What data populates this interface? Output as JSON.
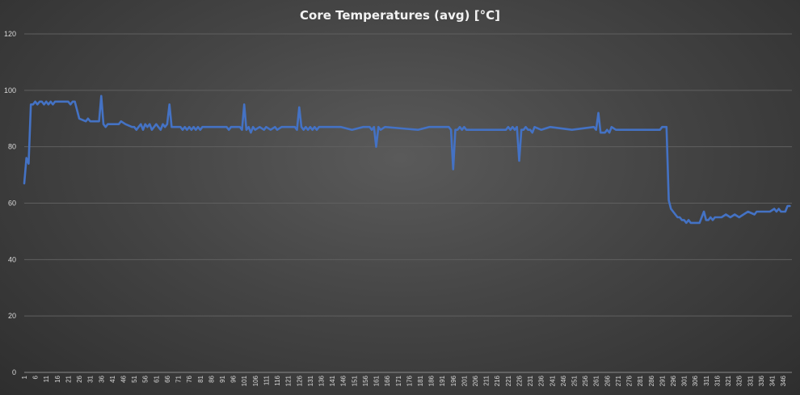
{
  "chart_data": {
    "type": "line",
    "title": "Core Temperatures (avg) [°C]",
    "xlabel": "",
    "ylabel": "",
    "ylim": [
      0,
      120
    ],
    "yticks": [
      0,
      20,
      40,
      60,
      80,
      100,
      120
    ],
    "xlim": [
      1,
      350
    ],
    "xticks": [
      1,
      6,
      11,
      16,
      21,
      26,
      31,
      36,
      41,
      46,
      51,
      56,
      61,
      66,
      71,
      76,
      81,
      86,
      91,
      96,
      101,
      106,
      111,
      116,
      121,
      126,
      131,
      136,
      141,
      146,
      151,
      156,
      161,
      166,
      171,
      176,
      181,
      186,
      191,
      196,
      201,
      206,
      211,
      216,
      221,
      226,
      231,
      236,
      241,
      246,
      251,
      256,
      261,
      266,
      271,
      276,
      281,
      286,
      291,
      296,
      301,
      306,
      311,
      316,
      321,
      326,
      331,
      336,
      341,
      346
    ],
    "grid": "horizontal",
    "legend": "none",
    "series_color": "#4472c4",
    "series": [
      {
        "x": [
          1,
          2,
          3,
          4,
          5,
          6,
          7,
          8,
          9,
          10,
          11,
          12,
          13,
          14,
          15,
          16,
          20,
          21,
          22,
          23,
          24,
          26,
          29,
          30,
          31,
          32,
          35,
          36,
          37,
          38,
          39,
          44,
          45,
          47,
          50,
          51,
          52,
          53,
          54,
          55,
          56,
          57,
          58,
          59,
          60,
          61,
          62,
          63,
          64,
          65,
          66,
          67,
          68,
          69,
          72,
          73,
          74,
          75,
          76,
          77,
          78,
          79,
          80,
          81,
          82,
          93,
          94,
          95,
          96,
          99,
          100,
          101,
          102,
          103,
          104,
          105,
          106,
          108,
          110,
          111,
          113,
          115,
          116,
          118,
          123,
          124,
          125,
          126,
          127,
          128,
          129,
          130,
          131,
          132,
          133,
          134,
          135,
          145,
          150,
          155,
          158,
          159,
          160,
          161,
          162,
          163,
          165,
          180,
          185,
          190,
          193,
          194,
          195,
          196,
          197,
          198,
          199,
          200,
          201,
          202,
          203,
          205,
          210,
          215,
          220,
          221,
          222,
          223,
          224,
          225,
          226,
          227,
          228,
          229,
          230,
          231,
          232,
          233,
          236,
          240,
          250,
          260,
          261,
          262,
          263,
          264,
          265,
          266,
          267,
          268,
          270,
          275,
          280,
          285,
          290,
          291,
          292,
          293,
          294,
          295,
          296,
          297,
          298,
          299,
          300,
          301,
          302,
          303,
          304,
          305,
          306,
          308,
          310,
          311,
          312,
          313,
          314,
          315,
          318,
          320,
          322,
          324,
          326,
          328,
          330,
          333,
          334,
          335,
          340,
          342,
          343,
          344,
          345,
          347,
          348,
          349
        ],
        "y": [
          67,
          76,
          74,
          95,
          95,
          96,
          95,
          96,
          96,
          95,
          96,
          95,
          96,
          95,
          96,
          96,
          96,
          96,
          95,
          96,
          96,
          90,
          89,
          90,
          89,
          89,
          89,
          98,
          88,
          87,
          88,
          88,
          89,
          88,
          87,
          87,
          86,
          87,
          88,
          86,
          88,
          87,
          88,
          86,
          87,
          88,
          87,
          86,
          88,
          87,
          88,
          95,
          87,
          87,
          87,
          86,
          87,
          86,
          87,
          86,
          87,
          86,
          87,
          86,
          87,
          87,
          86,
          87,
          87,
          87,
          86,
          95,
          86,
          87,
          85,
          87,
          86,
          87,
          86,
          87,
          86,
          87,
          86,
          87,
          87,
          87,
          86,
          94,
          87,
          86,
          87,
          86,
          87,
          86,
          87,
          86,
          87,
          87,
          86,
          87,
          87,
          86,
          87,
          80,
          87,
          86,
          87,
          86,
          87,
          87,
          87,
          87,
          86,
          72,
          86,
          86,
          87,
          86,
          87,
          86,
          86,
          86,
          86,
          86,
          86,
          87,
          86,
          87,
          86,
          87,
          75,
          86,
          86,
          87,
          86,
          86,
          85,
          87,
          86,
          87,
          86,
          87,
          86,
          92,
          85,
          85,
          85,
          86,
          85,
          87,
          86,
          86,
          86,
          86,
          86,
          87,
          87,
          87,
          61,
          58,
          57,
          56,
          55,
          55,
          54,
          54,
          53,
          54,
          53,
          53,
          53,
          53,
          57,
          54,
          54,
          55,
          54,
          55,
          55,
          56,
          55,
          56,
          55,
          56,
          57,
          56,
          57,
          57,
          57,
          58,
          57,
          58,
          57,
          57,
          59,
          59
        ]
      }
    ]
  }
}
